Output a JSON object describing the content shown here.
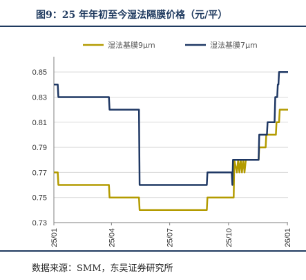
{
  "header": {
    "title": "图9：25 年年初至今湿法隔膜价格（元/平）"
  },
  "footer": {
    "source": "数据来源：SMM，东吴证券研究所"
  },
  "colors": {
    "accent": "#1f3a5f",
    "series_9um": "#b39b00",
    "series_7um": "#1f3864"
  },
  "chart_data": {
    "type": "line",
    "title": "",
    "xlabel": "",
    "ylabel": "",
    "ylim": [
      0.73,
      0.86
    ],
    "yticks": [
      "0.85",
      "0.83",
      "0.81",
      "0.79",
      "0.77",
      "0.75",
      "0.73"
    ],
    "xticks": [
      "25/01",
      "25/04",
      "25/07",
      "25/10",
      "26/01"
    ],
    "legend_position": "top",
    "grid": "horizontal",
    "series": [
      {
        "name": "湿法基膜9μm",
        "points": [
          [
            "2025-01-01",
            0.77
          ],
          [
            "2025-01-07",
            0.77
          ],
          [
            "2025-01-08",
            0.76
          ],
          [
            "2025-03-28",
            0.76
          ],
          [
            "2025-03-29",
            0.75
          ],
          [
            "2025-05-14",
            0.75
          ],
          [
            "2025-05-15",
            0.74
          ],
          [
            "2025-08-28",
            0.74
          ],
          [
            "2025-08-29",
            0.75
          ],
          [
            "2025-10-09",
            0.75
          ],
          [
            "2025-10-10",
            0.78
          ],
          [
            "2025-10-14",
            0.77
          ],
          [
            "2025-10-16",
            0.78
          ],
          [
            "2025-10-18",
            0.77
          ],
          [
            "2025-10-20",
            0.78
          ],
          [
            "2025-10-22",
            0.77
          ],
          [
            "2025-10-24",
            0.78
          ],
          [
            "2025-10-26",
            0.77
          ],
          [
            "2025-10-28",
            0.78
          ],
          [
            "2025-11-17",
            0.78
          ],
          [
            "2025-11-18",
            0.79
          ],
          [
            "2025-11-28",
            0.79
          ],
          [
            "2025-11-29",
            0.8
          ],
          [
            "2025-12-14",
            0.8
          ],
          [
            "2025-12-15",
            0.81
          ],
          [
            "2025-12-19",
            0.81
          ],
          [
            "2025-12-20",
            0.82
          ],
          [
            "2026-01-02",
            0.82
          ]
        ]
      },
      {
        "name": "湿法基膜7μm",
        "points": [
          [
            "2025-01-01",
            0.84
          ],
          [
            "2025-01-07",
            0.84
          ],
          [
            "2025-01-08",
            0.83
          ],
          [
            "2025-03-28",
            0.83
          ],
          [
            "2025-03-29",
            0.82
          ],
          [
            "2025-05-14",
            0.82
          ],
          [
            "2025-05-15",
            0.76
          ],
          [
            "2025-08-28",
            0.76
          ],
          [
            "2025-08-29",
            0.77
          ],
          [
            "2025-10-06",
            0.77
          ],
          [
            "2025-10-07",
            0.76
          ],
          [
            "2025-10-08",
            0.78
          ],
          [
            "2025-11-17",
            0.78
          ],
          [
            "2025-11-18",
            0.8
          ],
          [
            "2025-11-30",
            0.8
          ],
          [
            "2025-12-01",
            0.81
          ],
          [
            "2025-12-12",
            0.81
          ],
          [
            "2025-12-13",
            0.83
          ],
          [
            "2025-12-16",
            0.83
          ],
          [
            "2025-12-17",
            0.84
          ],
          [
            "2025-12-18",
            0.84
          ],
          [
            "2025-12-19",
            0.85
          ],
          [
            "2026-01-02",
            0.85
          ]
        ]
      }
    ]
  }
}
